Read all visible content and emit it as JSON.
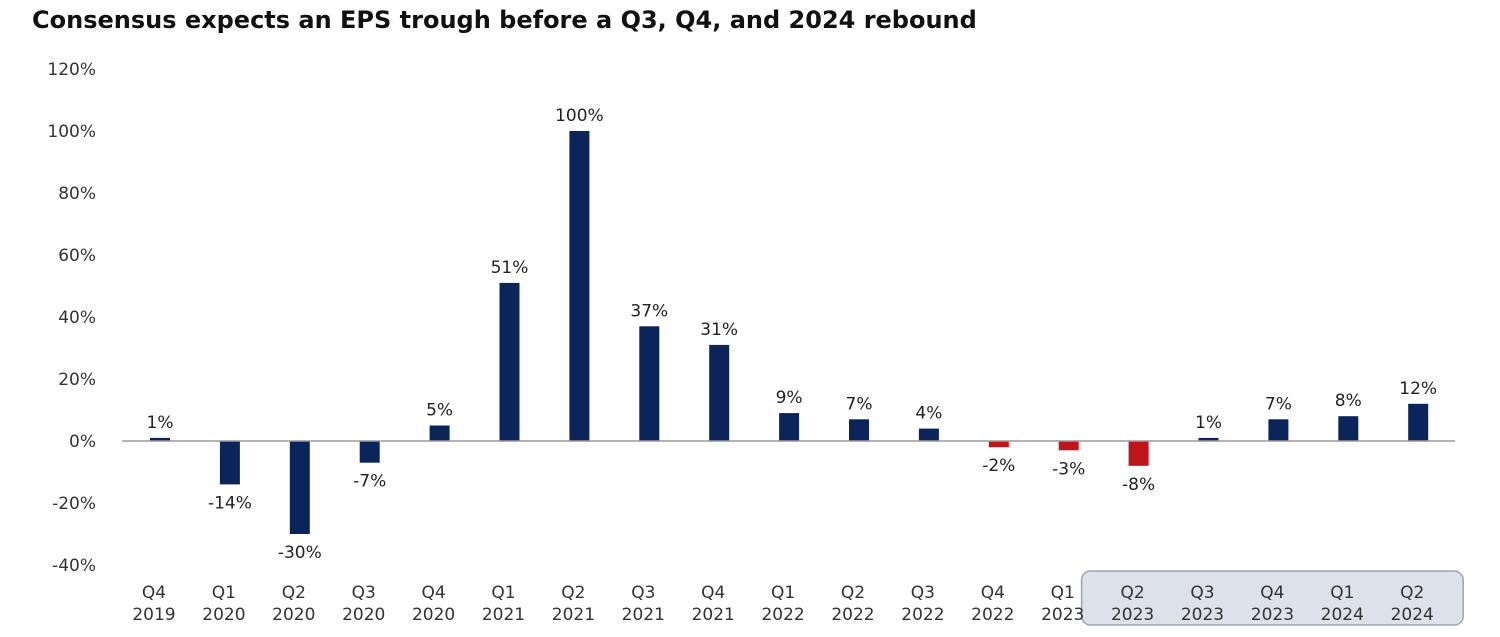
{
  "chart_data": {
    "type": "bar",
    "title": "Consensus expects an EPS trough before a Q3, Q4, and 2024 rebound",
    "xlabel": "",
    "ylabel": "",
    "ylim": [
      -40,
      120
    ],
    "yticks": [
      "120%",
      "100%",
      "80%",
      "60%",
      "40%",
      "20%",
      "0%",
      "-20%",
      "-40%"
    ],
    "grid": false,
    "categories": [
      [
        "Q4",
        "2019"
      ],
      [
        "Q1",
        "2020"
      ],
      [
        "Q2",
        "2020"
      ],
      [
        "Q3",
        "2020"
      ],
      [
        "Q4",
        "2020"
      ],
      [
        "Q1",
        "2021"
      ],
      [
        "Q2",
        "2021"
      ],
      [
        "Q3",
        "2021"
      ],
      [
        "Q4",
        "2021"
      ],
      [
        "Q1",
        "2022"
      ],
      [
        "Q2",
        "2022"
      ],
      [
        "Q3",
        "2022"
      ],
      [
        "Q4",
        "2022"
      ],
      [
        "Q1",
        "2023"
      ],
      [
        "Q2",
        "2023"
      ],
      [
        "Q3",
        "2023"
      ],
      [
        "Q4",
        "2023"
      ],
      [
        "Q1",
        "2024"
      ],
      [
        "Q2",
        "2024"
      ]
    ],
    "values": [
      1,
      -14,
      -30,
      -7,
      5,
      51,
      100,
      37,
      31,
      9,
      7,
      4,
      -2,
      -3,
      -8,
      1,
      7,
      8,
      12
    ],
    "data_labels": [
      "1%",
      "-14%",
      "-30%",
      "-7%",
      "5%",
      "51%",
      "100%",
      "37%",
      "31%",
      "9%",
      "7%",
      "4%",
      "-2%",
      "-3%",
      "-8%",
      "1%",
      "7%",
      "8%",
      "12%"
    ],
    "bar_colors": [
      "navy",
      "navy",
      "navy",
      "navy",
      "navy",
      "navy",
      "navy",
      "navy",
      "navy",
      "navy",
      "navy",
      "navy",
      "red",
      "red",
      "red",
      "navy",
      "navy",
      "navy",
      "navy"
    ],
    "highlighted_categories": [
      [
        "Q2",
        "2023"
      ],
      [
        "Q3",
        "2023"
      ],
      [
        "Q4",
        "2023"
      ],
      [
        "Q1",
        "2024"
      ],
      [
        "Q2",
        "2024"
      ]
    ],
    "colors": {
      "navy": "#0b2459",
      "red": "#c0141b",
      "highlight_bg": "#dde2ea",
      "highlight_border": "#9aa4b4"
    }
  }
}
